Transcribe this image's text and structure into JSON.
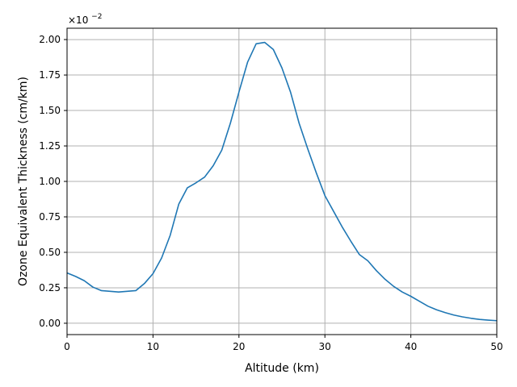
{
  "chart_data": {
    "type": "line",
    "title": "",
    "xlabel": "Altitude (km)",
    "ylabel": "Ozone Equivalent Thickness (cm/km)",
    "y_offset_text": {
      "base": "×10",
      "exponent": "−2"
    },
    "xlim": [
      0,
      50
    ],
    "ylim": [
      -0.08,
      2.08
    ],
    "y_scale_factor": 0.01,
    "grid": true,
    "xticks": [
      0,
      10,
      20,
      30,
      40,
      50
    ],
    "xtick_labels": [
      "0",
      "10",
      "20",
      "30",
      "40",
      "50"
    ],
    "yticks": [
      0,
      0.25,
      0.5,
      0.75,
      1.0,
      1.25,
      1.5,
      1.75,
      2.0
    ],
    "ytick_labels": [
      "0.00",
      "0.25",
      "0.50",
      "0.75",
      "1.00",
      "1.25",
      "1.50",
      "1.75",
      "2.00"
    ],
    "colors": {
      "line": "#1f77b4",
      "grid": "#b0b0b0",
      "axes": "#000000"
    },
    "series": [
      {
        "x": [
          0,
          1,
          2,
          3,
          4,
          5,
          6,
          7,
          8,
          9,
          10,
          11,
          12,
          13,
          14,
          15,
          16,
          17,
          18,
          19,
          20,
          21,
          22,
          23,
          24,
          25,
          26,
          27,
          28,
          29,
          30,
          31,
          32,
          33,
          34,
          35,
          36,
          37,
          38,
          39,
          40,
          41,
          42,
          43,
          44,
          45,
          46,
          47,
          48,
          49,
          50
        ],
        "values": [
          0.355,
          0.33,
          0.3,
          0.255,
          0.23,
          0.225,
          0.22,
          0.225,
          0.23,
          0.28,
          0.35,
          0.46,
          0.62,
          0.84,
          0.955,
          0.99,
          1.03,
          1.11,
          1.22,
          1.41,
          1.63,
          1.84,
          1.97,
          1.98,
          1.93,
          1.8,
          1.63,
          1.41,
          1.23,
          1.06,
          0.9,
          0.79,
          0.68,
          0.58,
          0.485,
          0.44,
          0.37,
          0.31,
          0.26,
          0.22,
          0.19,
          0.155,
          0.12,
          0.095,
          0.075,
          0.058,
          0.045,
          0.035,
          0.027,
          0.022,
          0.018
        ]
      }
    ]
  }
}
